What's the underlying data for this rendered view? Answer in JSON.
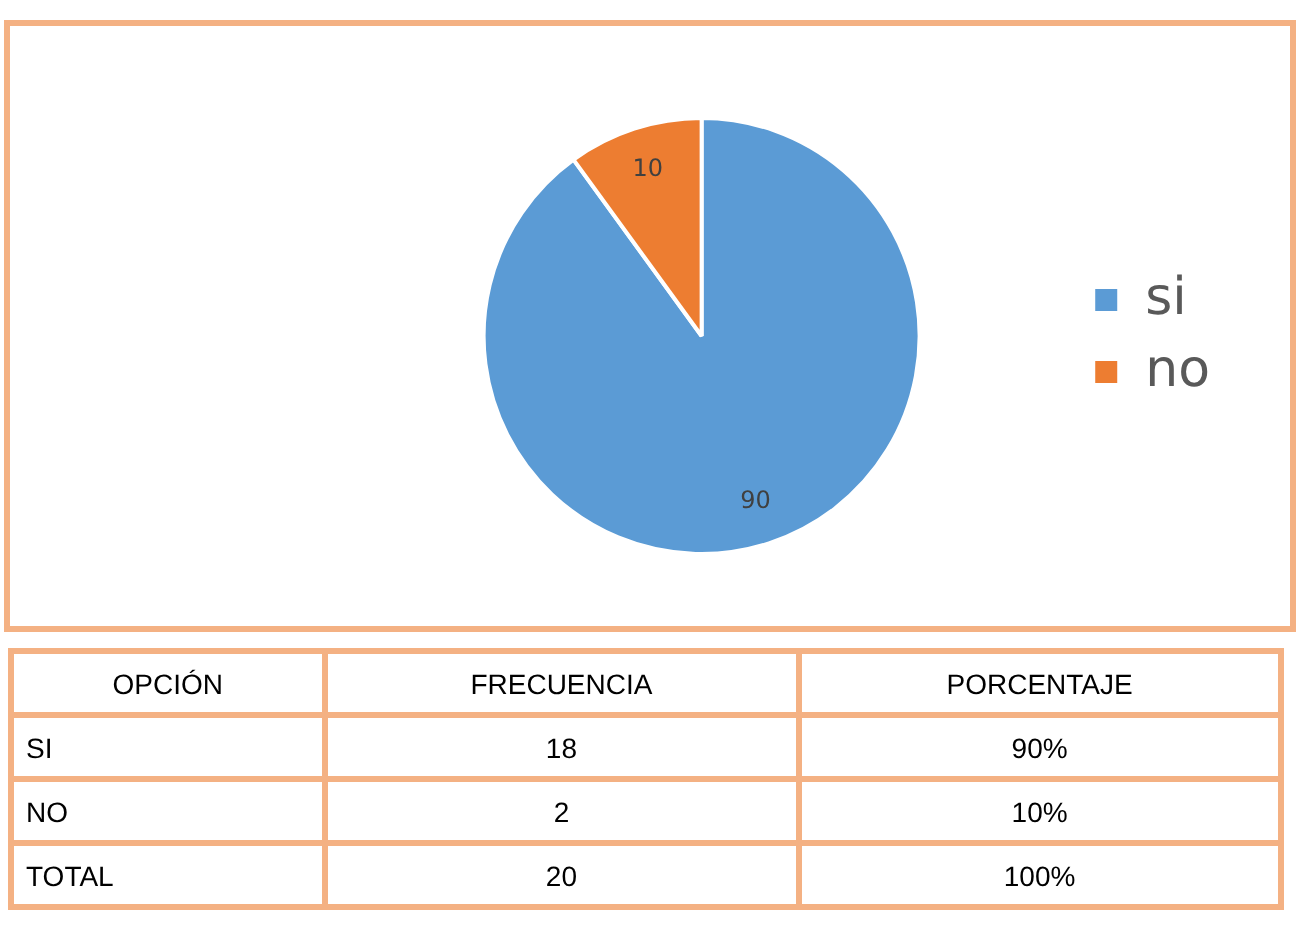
{
  "chart_data": {
    "type": "pie",
    "categories": [
      "si",
      "no"
    ],
    "values": [
      90,
      10
    ],
    "colors": [
      "#5b9bd5",
      "#ed7d31"
    ],
    "data_labels": true,
    "legend": "right",
    "annotations": [
      "OPCIÓN",
      "FRECUENCIA",
      "PORCENTAJE",
      "SI",
      "18",
      "90%",
      "NO",
      "2",
      "10%",
      "TOTAL",
      "20",
      "100%"
    ]
  }
}
